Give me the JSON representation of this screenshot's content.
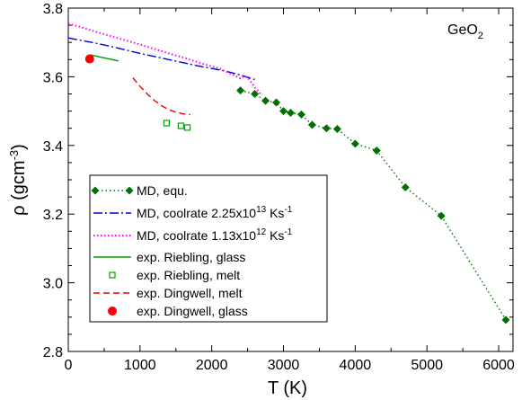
{
  "chart_data": {
    "type": "line",
    "annotation": {
      "text": "GeO",
      "subscript": "2"
    },
    "xlabel": "T (K)",
    "ylabel": {
      "main": "ρ (gcm",
      "sup": "-3",
      "close": ")"
    },
    "xlim": [
      0,
      6200
    ],
    "ylim": [
      2.8,
      3.8
    ],
    "xticks": [
      0,
      1000,
      2000,
      3000,
      4000,
      5000,
      6000
    ],
    "yticks": [
      2.8,
      3.0,
      3.2,
      3.4,
      3.6,
      3.8
    ],
    "grid": false,
    "legend_position": "lower-left",
    "series": [
      {
        "name": "MD, equ.",
        "style": "dotted-line-diamond",
        "color": "#007000",
        "x": [
          2400,
          2600,
          2750,
          2900,
          3000,
          3100,
          3250,
          3400,
          3600,
          3750,
          4000,
          4300,
          4700,
          5200,
          6100
        ],
        "y": [
          3.56,
          3.55,
          3.53,
          3.525,
          3.5,
          3.495,
          3.49,
          3.46,
          3.45,
          3.448,
          3.405,
          3.385,
          3.278,
          3.195,
          2.892
        ]
      },
      {
        "name": "MD, coolrate 2.25x10",
        "name_sup": "13",
        "name_unit": " Ks",
        "name_unit_sup": "-1",
        "style": "dash-dot",
        "color": "#0000e0",
        "x": [
          0,
          200,
          400,
          600,
          800,
          1000,
          1200,
          1400,
          1600,
          1800,
          2000,
          2200,
          2400,
          2600
        ],
        "y": [
          3.713,
          3.705,
          3.697,
          3.688,
          3.678,
          3.668,
          3.659,
          3.65,
          3.641,
          3.632,
          3.624,
          3.616,
          3.605,
          3.592
        ]
      },
      {
        "name": "MD, coolrate 1.13x10",
        "name_sup": "12",
        "name_unit": " Ks",
        "name_unit_sup": "-1",
        "style": "dotted",
        "color": "#ff00ff",
        "x": [
          0,
          200,
          400,
          600,
          800,
          1000,
          1200,
          1400,
          1600,
          1800,
          2000,
          2100,
          2200,
          2300,
          2400,
          2450,
          2500,
          2600,
          2700
        ],
        "y": [
          3.755,
          3.743,
          3.73,
          3.718,
          3.706,
          3.694,
          3.681,
          3.668,
          3.656,
          3.643,
          3.63,
          3.625,
          3.615,
          3.605,
          3.595,
          3.602,
          3.598,
          3.57,
          3.545
        ]
      },
      {
        "name": "exp. Riebling, glass",
        "style": "solid",
        "color": "#00a000",
        "x": [
          300,
          700
        ],
        "y": [
          3.664,
          3.646
        ]
      },
      {
        "name": "exp. Riebling, melt",
        "style": "open-square",
        "color": "#00a000",
        "x": [
          1370,
          1570,
          1660
        ],
        "y": [
          3.465,
          3.457,
          3.452
        ]
      },
      {
        "name": "exp. Dingwell, melt",
        "style": "dashed",
        "color": "#ee0000",
        "x": [
          900,
          1000,
          1100,
          1200,
          1300,
          1400,
          1500,
          1600,
          1700
        ],
        "y": [
          3.597,
          3.572,
          3.55,
          3.531,
          3.516,
          3.504,
          3.497,
          3.492,
          3.49
        ]
      },
      {
        "name": "exp. Dingwell, glass",
        "style": "filled-circle",
        "color": "#ff0000",
        "x": [
          298
        ],
        "y": [
          3.652
        ]
      }
    ]
  }
}
